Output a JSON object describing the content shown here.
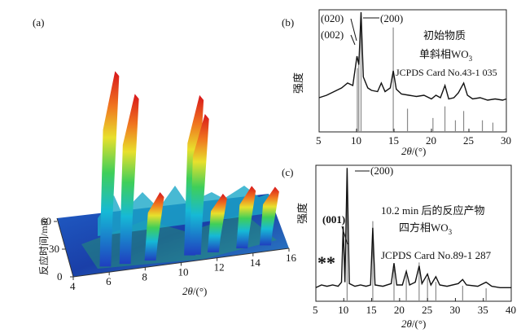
{
  "chart_data": [
    {
      "panel": "(a)",
      "type": "3d-surface",
      "xlabel_italic": "2θ",
      "xlabel_unit": "/(°)",
      "ylabel": "反应时间/min",
      "x_ticks": [
        4,
        6,
        8,
        10,
        12,
        14,
        16
      ],
      "y_ticks": [
        0,
        30,
        60
      ],
      "xlim": [
        4,
        16
      ],
      "ylim": [
        0,
        60
      ],
      "ridges": [
        {
          "two_theta": 5.6,
          "height": 1.0
        },
        {
          "two_theta": 6.7,
          "height": 0.87
        },
        {
          "two_theta": 10.3,
          "height": 0.82
        },
        {
          "two_theta": 10.6,
          "height": 0.72
        },
        {
          "two_theta": 8.1,
          "height": 0.35
        },
        {
          "two_theta": 11.6,
          "height": 0.3
        },
        {
          "two_theta": 13.2,
          "height": 0.32
        },
        {
          "two_theta": 14.5,
          "height": 0.3
        }
      ]
    },
    {
      "panel": "(b)",
      "type": "line",
      "title_lines": [
        "初始物质",
        "单斜相WO",
        "JCPDS Card No.43-1 035"
      ],
      "subscript": "3",
      "ylabel": "强度",
      "xlabel_italic": "2θ",
      "xlabel_unit": "/(°)",
      "xlim": [
        5,
        30
      ],
      "x_ticks": [
        5,
        10,
        15,
        20,
        25,
        30
      ],
      "peak_labels": [
        {
          "text": "(020)",
          "x": 10.3
        },
        {
          "text": "(002)",
          "x": 10.1
        },
        {
          "text": "(200)",
          "x": 10.6
        }
      ],
      "series": [
        {
          "name": "pattern",
          "points": [
            [
              5,
              0.28
            ],
            [
              6,
              0.3
            ],
            [
              7,
              0.33
            ],
            [
              8,
              0.36
            ],
            [
              8.8,
              0.4
            ],
            [
              9.5,
              0.38
            ],
            [
              10.05,
              0.62
            ],
            [
              10.3,
              0.55
            ],
            [
              10.6,
              0.98
            ],
            [
              10.9,
              0.45
            ],
            [
              11.5,
              0.36
            ],
            [
              12,
              0.34
            ],
            [
              12.8,
              0.33
            ],
            [
              13.3,
              0.4
            ],
            [
              13.8,
              0.33
            ],
            [
              14.5,
              0.36
            ],
            [
              14.9,
              0.5
            ],
            [
              15.3,
              0.35
            ],
            [
              16,
              0.31
            ],
            [
              17,
              0.3
            ],
            [
              18,
              0.29
            ],
            [
              19,
              0.3
            ],
            [
              20,
              0.27
            ],
            [
              20.6,
              0.3
            ],
            [
              21.2,
              0.28
            ],
            [
              21.8,
              0.38
            ],
            [
              22.3,
              0.27
            ],
            [
              23,
              0.28
            ],
            [
              23.6,
              0.32
            ],
            [
              24.3,
              0.4
            ],
            [
              24.8,
              0.3
            ],
            [
              25.5,
              0.27
            ],
            [
              26.5,
              0.28
            ],
            [
              27.5,
              0.26
            ],
            [
              28.5,
              0.27
            ],
            [
              29.5,
              0.26
            ],
            [
              30,
              0.27
            ]
          ]
        },
        {
          "name": "reference",
          "sticks": [
            [
              10.1,
              0.55
            ],
            [
              10.3,
              0.65
            ],
            [
              10.6,
              0.95
            ],
            [
              14.9,
              0.9
            ],
            [
              16.8,
              0.2
            ],
            [
              20.2,
              0.12
            ],
            [
              21.8,
              0.22
            ],
            [
              23.2,
              0.1
            ],
            [
              24.3,
              0.18
            ],
            [
              26.8,
              0.1
            ],
            [
              28.2,
              0.08
            ]
          ]
        }
      ]
    },
    {
      "panel": "(c)",
      "type": "line",
      "title_lines": [
        "10.2 min 后的反应产物",
        "四方相WO",
        "JCPDS Card No.89-1 287"
      ],
      "subscript": "3",
      "ylabel": "强度",
      "xlabel_italic": "2θ",
      "xlabel_unit": "/(°)",
      "xlim": [
        5,
        40
      ],
      "x_ticks": [
        5,
        10,
        15,
        20,
        25,
        30,
        35,
        40
      ],
      "peak_labels": [
        {
          "text": "(001)",
          "x": 9.9
        },
        {
          "text": "(200)",
          "x": 10.6
        }
      ],
      "markers": "**",
      "series": [
        {
          "name": "pattern",
          "points": [
            [
              5,
              0.1
            ],
            [
              6,
              0.12
            ],
            [
              7,
              0.11
            ],
            [
              8,
              0.12
            ],
            [
              9,
              0.11
            ],
            [
              9.6,
              0.14
            ],
            [
              9.9,
              0.55
            ],
            [
              10.2,
              0.14
            ],
            [
              10.6,
              0.98
            ],
            [
              11,
              0.13
            ],
            [
              12,
              0.11
            ],
            [
              13,
              0.12
            ],
            [
              14,
              0.11
            ],
            [
              14.8,
              0.12
            ],
            [
              15.2,
              0.54
            ],
            [
              15.6,
              0.12
            ],
            [
              17,
              0.11
            ],
            [
              18.5,
              0.13
            ],
            [
              19,
              0.28
            ],
            [
              19.5,
              0.12
            ],
            [
              20.5,
              0.12
            ],
            [
              21.2,
              0.22
            ],
            [
              21.8,
              0.12
            ],
            [
              22.8,
              0.14
            ],
            [
              23.5,
              0.26
            ],
            [
              24,
              0.13
            ],
            [
              25,
              0.2
            ],
            [
              25.6,
              0.12
            ],
            [
              26.5,
              0.18
            ],
            [
              27.2,
              0.12
            ],
            [
              28.5,
              0.11
            ],
            [
              30.5,
              0.13
            ],
            [
              31.3,
              0.16
            ],
            [
              32,
              0.12
            ],
            [
              34,
              0.11
            ],
            [
              35.5,
              0.14
            ],
            [
              36.5,
              0.11
            ],
            [
              38,
              0.1
            ],
            [
              40,
              0.1
            ]
          ]
        },
        {
          "name": "reference",
          "sticks": [
            [
              10.6,
              0.95
            ],
            [
              15.2,
              0.62
            ],
            [
              19,
              0.25
            ],
            [
              21.2,
              0.2
            ],
            [
              23.5,
              0.3
            ],
            [
              25,
              0.18
            ],
            [
              26.5,
              0.15
            ],
            [
              31.3,
              0.12
            ],
            [
              35.5,
              0.1
            ]
          ]
        }
      ]
    }
  ]
}
